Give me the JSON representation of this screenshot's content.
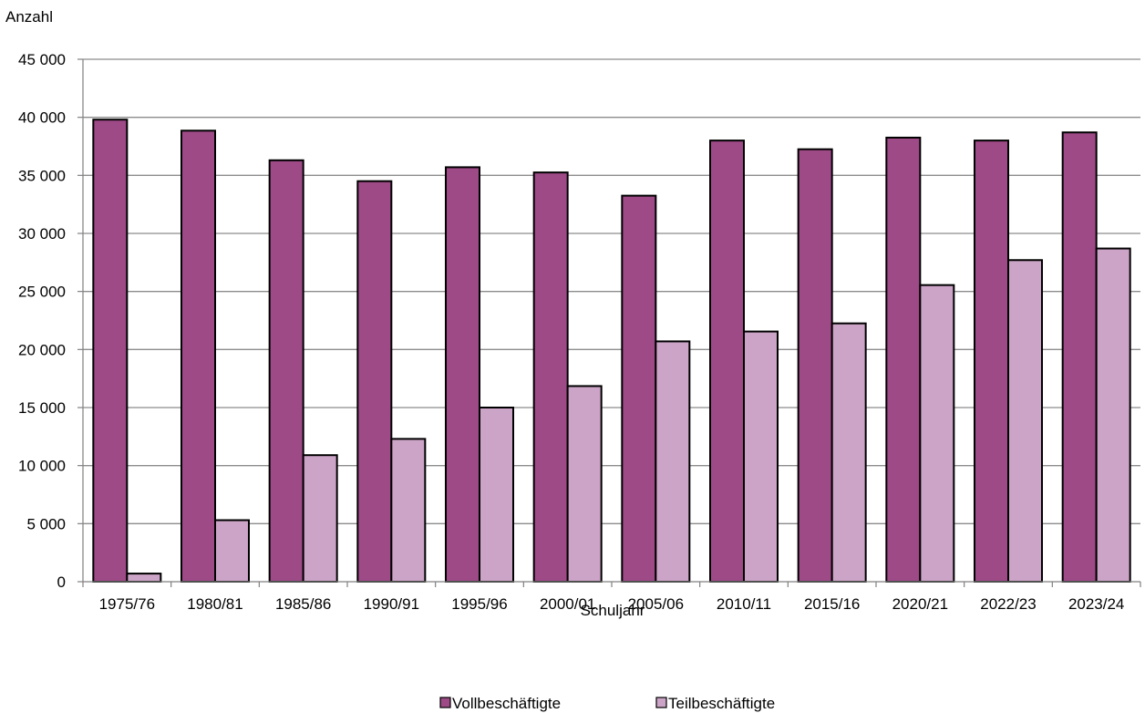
{
  "chart_data": {
    "type": "bar",
    "ylabel": "Anzahl",
    "xlabel": "Schuljahr",
    "categories": [
      "1975/76",
      "1980/81",
      "1985/86",
      "1990/91",
      "1995/96",
      "2000/01",
      "2005/06",
      "2010/11",
      "2015/16",
      "2020/21",
      "2022/23",
      "2023/24"
    ],
    "series": [
      {
        "name": "Vollbeschäftigte",
        "color": "#9E4A87",
        "values": [
          39800,
          38850,
          36300,
          34500,
          35700,
          35250,
          33250,
          38000,
          37250,
          38250,
          38000,
          38700
        ]
      },
      {
        "name": "Teilbeschäftigte",
        "color": "#CCA4C7",
        "values": [
          700,
          5300,
          10900,
          12300,
          15000,
          16850,
          20700,
          21550,
          22250,
          25550,
          27700,
          28700
        ]
      }
    ],
    "ylim": [
      0,
      45000
    ],
    "yticks": [
      0,
      5000,
      10000,
      15000,
      20000,
      25000,
      30000,
      35000,
      40000,
      45000
    ],
    "ytick_labels": [
      "0",
      "5 000",
      "10 000",
      "15 000",
      "20 000",
      "25 000",
      "30 000",
      "35 000",
      "40 000",
      "45 000"
    ],
    "grid": true,
    "legend_position": "bottom-center"
  }
}
